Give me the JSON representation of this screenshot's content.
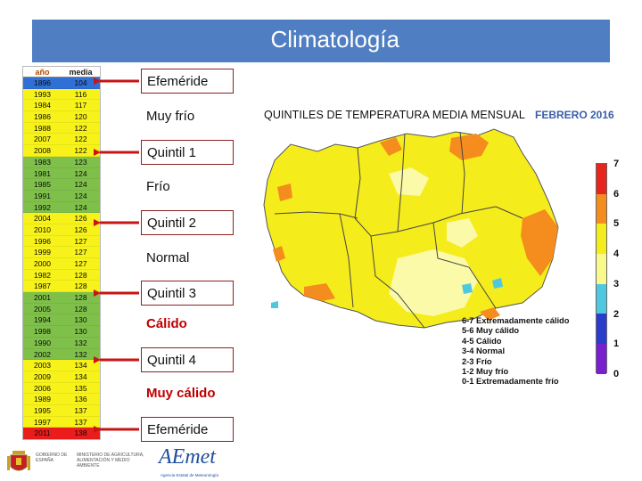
{
  "header": {
    "title": "Climatología"
  },
  "table": {
    "columns": {
      "year": "año",
      "mean": "media"
    },
    "rows": [
      {
        "year": "1896",
        "value": "104",
        "color": "#2f6fd6"
      },
      {
        "year": "1993",
        "value": "116",
        "color": "#f7f21a"
      },
      {
        "year": "1984",
        "value": "117",
        "color": "#f7f21a"
      },
      {
        "year": "1986",
        "value": "120",
        "color": "#f7f21a"
      },
      {
        "year": "1988",
        "value": "122",
        "color": "#f7f21a"
      },
      {
        "year": "2007",
        "value": "122",
        "color": "#f7f21a"
      },
      {
        "year": "2008",
        "value": "122",
        "color": "#f7f21a"
      },
      {
        "year": "1983",
        "value": "123",
        "color": "#7fc04a"
      },
      {
        "year": "1981",
        "value": "124",
        "color": "#7fc04a"
      },
      {
        "year": "1985",
        "value": "124",
        "color": "#7fc04a"
      },
      {
        "year": "1991",
        "value": "124",
        "color": "#7fc04a"
      },
      {
        "year": "1992",
        "value": "124",
        "color": "#7fc04a"
      },
      {
        "year": "2004",
        "value": "126",
        "color": "#f7f21a"
      },
      {
        "year": "2010",
        "value": "126",
        "color": "#f7f21a"
      },
      {
        "year": "1996",
        "value": "127",
        "color": "#f7f21a"
      },
      {
        "year": "1999",
        "value": "127",
        "color": "#f7f21a"
      },
      {
        "year": "2000",
        "value": "127",
        "color": "#f7f21a"
      },
      {
        "year": "1982",
        "value": "128",
        "color": "#f7f21a"
      },
      {
        "year": "1987",
        "value": "128",
        "color": "#f7f21a"
      },
      {
        "year": "2001",
        "value": "128",
        "color": "#7fc04a"
      },
      {
        "year": "2005",
        "value": "128",
        "color": "#7fc04a"
      },
      {
        "year": "1994",
        "value": "130",
        "color": "#7fc04a"
      },
      {
        "year": "1998",
        "value": "130",
        "color": "#7fc04a"
      },
      {
        "year": "1990",
        "value": "132",
        "color": "#7fc04a"
      },
      {
        "year": "2002",
        "value": "132",
        "color": "#7fc04a"
      },
      {
        "year": "2003",
        "value": "134",
        "color": "#f7f21a"
      },
      {
        "year": "2009",
        "value": "134",
        "color": "#f7f21a"
      },
      {
        "year": "2006",
        "value": "135",
        "color": "#f7f21a"
      },
      {
        "year": "1989",
        "value": "136",
        "color": "#f7f21a"
      },
      {
        "year": "1995",
        "value": "137",
        "color": "#f7f21a"
      },
      {
        "year": "1997",
        "value": "137",
        "color": "#f7f21a"
      },
      {
        "year": "2011",
        "value": "138",
        "color": "#ec1c1c"
      }
    ]
  },
  "labels": [
    {
      "text": "Efeméride",
      "style": "boxed"
    },
    {
      "text": "Muy frío",
      "style": "plain"
    },
    {
      "text": "Quintil 1",
      "style": "boxed"
    },
    {
      "text": "Frío",
      "style": "plain"
    },
    {
      "text": "Quintil 2",
      "style": "boxed"
    },
    {
      "text": "Normal",
      "style": "plain"
    },
    {
      "text": "Quintil 3",
      "style": "boxed"
    },
    {
      "text": "Cálido",
      "style": "red"
    },
    {
      "text": "Quintil 4",
      "style": "boxed"
    },
    {
      "text": "Muy cálido",
      "style": "red"
    },
    {
      "text": "Efeméride",
      "style": "boxed"
    }
  ],
  "map": {
    "title": "QUINTILES DE TEMPERATURA MEDIA MENSUAL",
    "date": "FEBRERO 2016",
    "legend": [
      "6-7 Extremadamente cálido",
      "5-6 Muy cálido",
      "4-5 Cálido",
      "3-4 Normal",
      "2-3 Frío",
      "1-2 Muy frío",
      "0-1 Extremadamente frío"
    ],
    "scale_labels": [
      "7",
      "6",
      "5",
      "4",
      "3",
      "2",
      "1",
      "0"
    ],
    "scale_colors": [
      "#e8251c",
      "#f58c1e",
      "#f5ec1c",
      "#fafa8c",
      "#4ec8e0",
      "#2a3ccc",
      "#7a1fd0"
    ]
  },
  "footer": {
    "government_text": "GOBIERNO DE ESPAÑA",
    "ministry_text": "MINISTERIO DE AGRICULTURA, ALIMENTACIÓN Y MEDIO AMBIENTE",
    "agency_name": "AEmet",
    "agency_subtitle": "Agencia Estatal de Meteorología"
  }
}
